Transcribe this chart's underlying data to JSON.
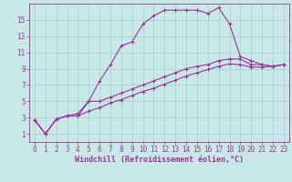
{
  "xlabel": "Windchill (Refroidissement éolien,°C)",
  "bg_color": "#c8e8e8",
  "line_color": "#993399",
  "grid_color": "#a8cccc",
  "line1_x": [
    0,
    1,
    2,
    3,
    4,
    5,
    6,
    7,
    8,
    9,
    10,
    11,
    12,
    13,
    14,
    15,
    16,
    17,
    18,
    19,
    20,
    21,
    22,
    23
  ],
  "line1_y": [
    2.7,
    1.0,
    2.8,
    3.2,
    3.2,
    5.0,
    7.5,
    9.5,
    11.8,
    12.3,
    14.5,
    15.5,
    16.2,
    16.2,
    16.2,
    16.2,
    15.8,
    16.5,
    14.5,
    10.5,
    10.0,
    9.5,
    9.3,
    9.5
  ],
  "line2_x": [
    0,
    1,
    2,
    3,
    4,
    5,
    6,
    7,
    8,
    9,
    10,
    11,
    12,
    13,
    14,
    15,
    16,
    17,
    18,
    19,
    20,
    21,
    22,
    23
  ],
  "line2_y": [
    2.7,
    1.0,
    2.8,
    3.2,
    3.5,
    5.0,
    5.0,
    5.5,
    6.0,
    6.5,
    7.0,
    7.5,
    8.0,
    8.5,
    9.0,
    9.3,
    9.5,
    10.0,
    10.2,
    10.2,
    9.5,
    9.5,
    9.3,
    9.5
  ],
  "line3_x": [
    0,
    1,
    2,
    3,
    4,
    5,
    6,
    7,
    8,
    9,
    10,
    11,
    12,
    13,
    14,
    15,
    16,
    17,
    18,
    19,
    20,
    21,
    22,
    23
  ],
  "line3_y": [
    2.7,
    1.0,
    2.8,
    3.2,
    3.2,
    3.8,
    4.2,
    4.8,
    5.2,
    5.7,
    6.2,
    6.6,
    7.1,
    7.6,
    8.1,
    8.5,
    8.9,
    9.3,
    9.6,
    9.5,
    9.2,
    9.2,
    9.3,
    9.5
  ],
  "xlim": [
    -0.5,
    23.5
  ],
  "ylim": [
    0,
    17
  ],
  "xticks": [
    0,
    1,
    2,
    3,
    4,
    5,
    6,
    7,
    8,
    9,
    10,
    11,
    12,
    13,
    14,
    15,
    16,
    17,
    18,
    19,
    20,
    21,
    22,
    23
  ],
  "yticks": [
    1,
    3,
    5,
    7,
    9,
    11,
    13,
    15
  ],
  "tick_fontsize": 5.5,
  "label_fontsize": 6,
  "marker": "+",
  "markersize": 3,
  "linewidth": 0.8
}
